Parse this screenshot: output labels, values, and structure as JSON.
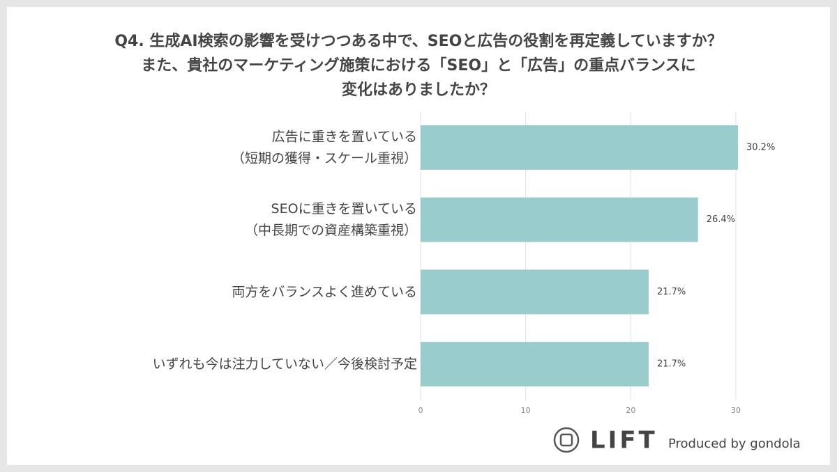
{
  "chart_data": {
    "type": "barh",
    "title": [
      "Q4. 生成AI検索の影響を受けつつある中で、SEOと広告の役割を再定義していますか？",
      "また、貴社のマーケティング施策における「SEO」と「広告」の重点バランスに",
      "変化はありましたか？"
    ],
    "categories": [
      [
        "広告に重きを置いている",
        "（短期の獲得・スケール重視）"
      ],
      [
        "SEOに重きを置いている",
        "（中長期での資産構築重視）"
      ],
      [
        "両方をバランスよく進めている"
      ],
      [
        "いずれも今は注力していない／今後検討予定"
      ]
    ],
    "values": [
      30.2,
      26.4,
      21.7,
      21.7
    ],
    "value_labels": [
      "30.2%",
      "26.4%",
      "21.7%",
      "21.7%"
    ],
    "color": "#99cccc",
    "xlim": [
      0,
      30
    ],
    "xticks": [
      0,
      10,
      20,
      30
    ],
    "grid": true
  },
  "footer": {
    "logo": "LIFT",
    "credit": "Produced by gondola"
  }
}
